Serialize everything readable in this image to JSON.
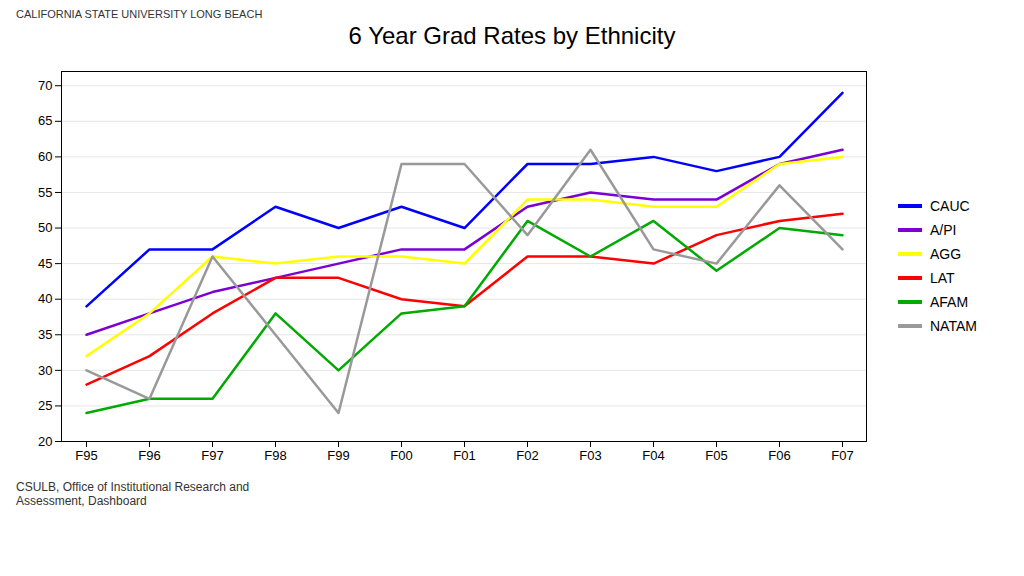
{
  "chart_data": {
    "type": "line",
    "title": "6 Year Grad Rates by Ethnicity",
    "subtitle": "CALIFORNIA STATE UNIVERSITY  LONG BEACH",
    "annotations": [
      "CSULB, Office of Institutional Research and\nAssessment, Dashboard"
    ],
    "categories": [
      "F95",
      "F96",
      "F97",
      "F98",
      "F99",
      "F00",
      "F01",
      "F02",
      "F03",
      "F04",
      "F05",
      "F06",
      "F07"
    ],
    "series": [
      {
        "name": "CAUC",
        "color": "#0000FF",
        "values": [
          39,
          47,
          47,
          53,
          50,
          53,
          50,
          59,
          59,
          60,
          58,
          60,
          69
        ]
      },
      {
        "name": "A/PI",
        "color": "#7B00D4",
        "values": [
          35,
          38,
          41,
          43,
          45,
          47,
          47,
          53,
          55,
          54,
          54,
          59,
          61
        ]
      },
      {
        "name": "AGG",
        "color": "#FFFF00",
        "values": [
          32,
          38,
          46,
          45,
          46,
          46,
          45,
          54,
          54,
          53,
          53,
          59,
          60
        ]
      },
      {
        "name": "LAT",
        "color": "#FF0000",
        "values": [
          28,
          32,
          38,
          43,
          43,
          40,
          39,
          46,
          46,
          45,
          49,
          51,
          52
        ]
      },
      {
        "name": "AFAM",
        "color": "#00AA00",
        "values": [
          24,
          26,
          26,
          38,
          30,
          38,
          39,
          51,
          46,
          51,
          44,
          50,
          49
        ]
      },
      {
        "name": "NATAM",
        "color": "#999999",
        "values": [
          30,
          26,
          46,
          35,
          24,
          59,
          59,
          49,
          61,
          47,
          45,
          56,
          47
        ]
      }
    ],
    "ylim": [
      20,
      72
    ],
    "yticks": [
      20,
      25,
      30,
      35,
      40,
      45,
      50,
      55,
      60,
      65,
      70
    ],
    "grid": true,
    "legend": "right"
  }
}
